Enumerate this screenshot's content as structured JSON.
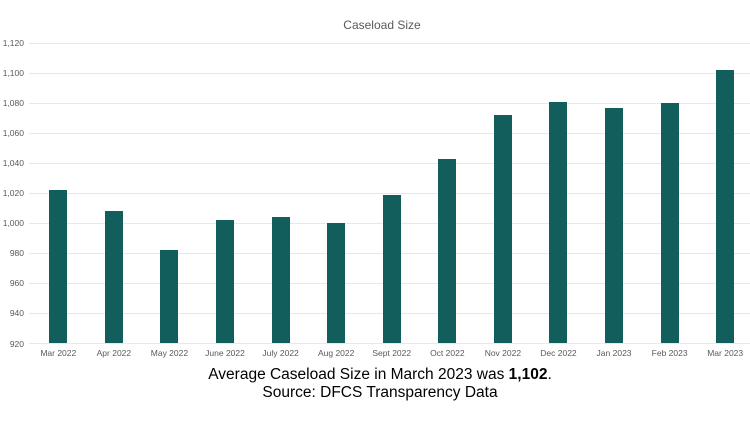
{
  "chart_data": {
    "type": "bar",
    "title": "Caseload Size",
    "categories": [
      "Mar 2022",
      "Apr 2022",
      "May 2022",
      "June 2022",
      "July 2022",
      "Aug 2022",
      "Sept 2022",
      "Oct 2022",
      "Nov 2022",
      "Dec 2022",
      "Jan 2023",
      "Feb 2023",
      "Mar 2023"
    ],
    "values": [
      1022,
      1008,
      982,
      1002,
      1004,
      1000,
      1019,
      1043,
      1072,
      1081,
      1077,
      1080,
      1102
    ],
    "xlabel": "",
    "ylabel": "",
    "ylim": [
      920,
      1120
    ],
    "ytick_step": 20,
    "ytick_labels": [
      "1,120",
      "1,100",
      "1,080",
      "1,060",
      "1,040",
      "1,020",
      "1,000",
      "980",
      "960",
      "940",
      "920"
    ],
    "grid": true,
    "legend": "none",
    "bar_color": "#115e5d",
    "gridline_color": "#e8e8e8",
    "axis_label_color": "#595959",
    "title_color": "#595959"
  },
  "caption": {
    "line1_prefix": "Average Caseload Size in March 2023 was ",
    "line1_bold": "1,102",
    "line1_suffix": ".",
    "line2": "Source: DFCS Transparency Data"
  }
}
